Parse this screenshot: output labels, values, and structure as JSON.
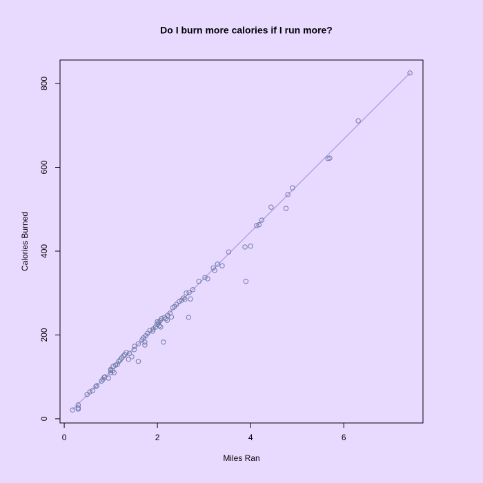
{
  "chart_data": {
    "type": "scatter",
    "title": "Do I burn more calories if I run more?",
    "x_label": "Miles Ran",
    "y_label": "Calories Burned",
    "x": [
      0.18,
      0.3,
      0.3,
      0.3,
      0.49,
      0.55,
      0.61,
      0.68,
      0.7,
      0.8,
      0.83,
      0.86,
      0.87,
      0.95,
      1.0,
      1.0,
      1.0,
      1.04,
      1.05,
      1.07,
      1.1,
      1.14,
      1.17,
      1.2,
      1.23,
      1.27,
      1.3,
      1.33,
      1.38,
      1.4,
      1.45,
      1.5,
      1.51,
      1.59,
      1.59,
      1.67,
      1.7,
      1.73,
      1.73,
      1.75,
      1.79,
      1.84,
      1.9,
      1.91,
      1.96,
      1.99,
      2.0,
      2.02,
      2.04,
      2.06,
      2.07,
      2.09,
      2.13,
      2.15,
      2.18,
      2.21,
      2.22,
      2.27,
      2.3,
      2.33,
      2.37,
      2.41,
      2.47,
      2.52,
      2.56,
      2.59,
      2.62,
      2.67,
      2.68,
      2.71,
      2.76,
      2.89,
      3.02,
      3.08,
      3.2,
      3.23,
      3.29,
      3.39,
      3.53,
      3.88,
      3.9,
      4.0,
      4.13,
      4.18,
      4.24,
      4.44,
      4.76,
      4.8,
      4.9,
      5.66,
      5.7,
      6.31,
      7.42
    ],
    "y": [
      21,
      33,
      23,
      26,
      58,
      64,
      67,
      77,
      79,
      90,
      94,
      99,
      100,
      97,
      110,
      115,
      118,
      115,
      125,
      110,
      128,
      130,
      137,
      140,
      145,
      150,
      153,
      158,
      142,
      156,
      148,
      165,
      173,
      137,
      179,
      188,
      193,
      183,
      176,
      198,
      204,
      211,
      209,
      214,
      219,
      225,
      232,
      229,
      222,
      234,
      219,
      239,
      183,
      242,
      239,
      235,
      247,
      252,
      243,
      265,
      268,
      273,
      280,
      283,
      288,
      285,
      300,
      242,
      301,
      286,
      308,
      328,
      337,
      334,
      360,
      354,
      369,
      365,
      398,
      410,
      328,
      412,
      461,
      463,
      474,
      505,
      502,
      535,
      551,
      621,
      622,
      711,
      825
    ],
    "color": "#6e7aa6",
    "fit_line": {
      "x": [
        0.18,
        7.42
      ],
      "y": [
        22,
        825
      ],
      "color": "#b3a3e6"
    },
    "xlim": [
      -0.09,
      7.7
    ],
    "ylim": [
      -10,
      856
    ],
    "xticks": [
      0,
      2,
      4,
      6
    ],
    "yticks": [
      0,
      200,
      400,
      600,
      800
    ]
  }
}
